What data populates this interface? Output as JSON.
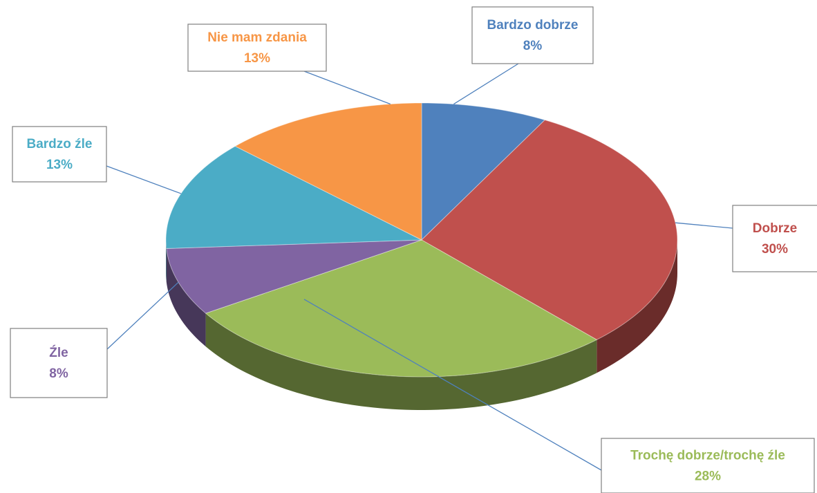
{
  "chart_data": {
    "type": "pie",
    "categories": [
      "Bardzo dobrze",
      "Dobrze",
      "Trochę dobrze/trochę źle",
      "Źle",
      "Bardzo źle",
      "Nie mam zdania"
    ],
    "values": [
      8,
      30,
      28,
      8,
      13,
      13
    ],
    "value_labels": [
      "8%",
      "30%",
      "28%",
      "8%",
      "13%",
      "13%"
    ],
    "colors": [
      "#4f81bd",
      "#c0504d",
      "#9bbb59",
      "#8064a2",
      "#4bacc6",
      "#f79646"
    ]
  }
}
